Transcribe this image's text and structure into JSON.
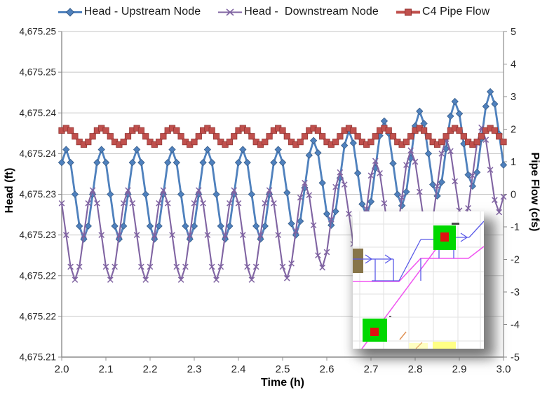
{
  "figure": {
    "legend": [
      {
        "label": "Head - Upstream Node",
        "marker": "diamond",
        "color": "#4F81BD",
        "edge": "#385D8A"
      },
      {
        "label": "Head -  Downstream Node",
        "marker": "x-cross",
        "color": "#8064A2",
        "edge": "#604A7B"
      },
      {
        "label": "C4 Pipe Flow",
        "marker": "square",
        "color": "#C0504D",
        "edge": "#943634"
      }
    ],
    "left_axis": {
      "title": "Head (ft)",
      "tick_labels": [
        "4,675.25",
        "4,675.25",
        "4,675.24",
        "4,675.24",
        "4,675.23",
        "4,675.23",
        "4,675.22",
        "4,675.22",
        "4,675.21"
      ]
    },
    "right_axis": {
      "title": "Pipe Flow (cfs)",
      "tick_labels": [
        "5",
        "4",
        "3",
        "2",
        "1",
        "0",
        "-1",
        "-2",
        "-3",
        "-4",
        "-5"
      ]
    },
    "x_axis": {
      "title": "Time (h)",
      "tick_labels": [
        "2.0",
        "2.1",
        "2.2",
        "2.3",
        "2.4",
        "2.5",
        "2.6",
        "2.7",
        "2.8",
        "2.9",
        "3.0"
      ]
    },
    "colors": {
      "gridline": "#C6C6C6",
      "axis_line": "#8C8C8C",
      "tick_text": "#262626"
    }
  },
  "chart_data": {
    "type": "line",
    "title": "",
    "xlabel": "Time (h)",
    "ylabel_left": "Head (ft)",
    "ylabel_right": "Pipe Flow (cfs)",
    "xlim": [
      2.0,
      3.0
    ],
    "left_ylim": [
      4675.21,
      4675.25
    ],
    "right_ylim": [
      -5,
      5
    ],
    "grid": "horizontal",
    "legend_position": "top",
    "x": [
      2,
      2.01,
      2.02,
      2.03,
      2.04,
      2.05,
      2.06,
      2.07,
      2.08,
      2.09,
      2.1,
      2.11,
      2.12,
      2.13,
      2.14,
      2.15,
      2.16,
      2.17,
      2.18,
      2.19,
      2.2,
      2.21,
      2.22,
      2.23,
      2.24,
      2.25,
      2.26,
      2.27,
      2.28,
      2.29,
      2.3,
      2.31,
      2.32,
      2.33,
      2.34,
      2.35,
      2.36,
      2.37,
      2.38,
      2.39,
      2.4,
      2.41,
      2.42,
      2.43,
      2.44,
      2.45,
      2.46,
      2.47,
      2.48,
      2.49,
      2.5,
      2.51,
      2.52,
      2.53,
      2.54,
      2.55,
      2.56,
      2.57,
      2.58,
      2.59,
      2.6,
      2.61,
      2.62,
      2.63,
      2.64,
      2.65,
      2.66,
      2.67,
      2.68,
      2.69,
      2.7,
      2.71,
      2.72,
      2.73,
      2.74,
      2.75,
      2.76,
      2.77,
      2.78,
      2.79,
      2.8,
      2.81,
      2.82,
      2.83,
      2.84,
      2.85,
      2.86,
      2.87,
      2.88,
      2.89,
      2.9,
      2.91,
      2.92,
      2.93,
      2.94,
      2.95,
      2.96,
      2.97,
      2.98,
      2.99,
      3
    ],
    "series": [
      {
        "name": "Head - Upstream Node",
        "axis": "left",
        "marker": "diamond",
        "color": "#4F81BD",
        "edge": "#385D8A",
        "values": [
          4675.2339,
          4675.2355,
          4675.2339,
          4675.23,
          4675.2261,
          4675.2245,
          4675.2261,
          4675.23,
          4675.2339,
          4675.2355,
          4675.2339,
          4675.23,
          4675.2261,
          4675.2245,
          4675.2261,
          4675.23,
          4675.2339,
          4675.2355,
          4675.2339,
          4675.23,
          4675.2261,
          4675.2245,
          4675.2261,
          4675.23,
          4675.2339,
          4675.2355,
          4675.2339,
          4675.23,
          4675.2261,
          4675.2245,
          4675.2261,
          4675.23,
          4675.2339,
          4675.2355,
          4675.2339,
          4675.23,
          4675.2261,
          4675.2245,
          4675.2261,
          4675.23,
          4675.2339,
          4675.2355,
          4675.2339,
          4675.23,
          4675.2261,
          4675.2245,
          4675.2261,
          4675.23,
          4675.2339,
          4675.2355,
          4675.2339,
          4675.2302,
          4675.2264,
          4675.225,
          4675.2267,
          4675.2308,
          4675.2348,
          4675.2366,
          4675.2351,
          4675.2314,
          4675.2276,
          4675.2262,
          4675.2279,
          4675.232,
          4675.236,
          4675.2378,
          4675.2363,
          4675.2326,
          4675.2288,
          4675.2274,
          4675.2291,
          4675.2332,
          4675.2372,
          4675.239,
          4675.2375,
          4675.2338,
          4675.23,
          4675.2286,
          4675.2303,
          4675.2344,
          4675.2384,
          4675.2402,
          4675.2387,
          4675.235,
          4675.2312,
          4675.2298,
          4675.2315,
          4675.2356,
          4675.2396,
          4675.2414,
          4675.2399,
          4675.2362,
          4675.2324,
          4675.231,
          4675.2327,
          4675.2368,
          4675.2408,
          4675.2426,
          4675.2411,
          4675.2374,
          4675.2336
        ]
      },
      {
        "name": "Head -  Downstream Node",
        "axis": "left",
        "marker": "x-cross",
        "color": "#8064A2",
        "edge": "#604A7B",
        "values": [
          4675.2289,
          4675.225,
          4675.2211,
          4675.2195,
          4675.2211,
          4675.225,
          4675.2289,
          4675.2305,
          4675.2289,
          4675.225,
          4675.2211,
          4675.2195,
          4675.2211,
          4675.225,
          4675.2289,
          4675.2305,
          4675.2289,
          4675.225,
          4675.2211,
          4675.2195,
          4675.2211,
          4675.225,
          4675.2289,
          4675.2305,
          4675.2289,
          4675.225,
          4675.2211,
          4675.2195,
          4675.2211,
          4675.225,
          4675.2289,
          4675.2305,
          4675.2289,
          4675.225,
          4675.2211,
          4675.2195,
          4675.2211,
          4675.225,
          4675.2289,
          4675.2305,
          4675.2289,
          4675.225,
          4675.2211,
          4675.2195,
          4675.2211,
          4675.225,
          4675.2289,
          4675.2305,
          4675.2289,
          4675.225,
          4675.2211,
          4675.2197,
          4675.2215,
          4675.2255,
          4675.2296,
          4675.2314,
          4675.2299,
          4675.2262,
          4675.2225,
          4675.221,
          4675.2229,
          4675.2269,
          4675.2309,
          4675.2327,
          4675.2312,
          4675.2276,
          4675.2239,
          4675.2224,
          4675.2242,
          4675.2282,
          4675.2323,
          4675.2341,
          4675.2326,
          4675.2289,
          4675.2252,
          4675.2238,
          4675.2256,
          4675.2296,
          4675.2336,
          4675.2354,
          4675.234,
          4675.2303,
          4675.2266,
          4675.2251,
          4675.2269,
          4675.231,
          4675.235,
          4675.2368,
          4675.2353,
          4675.2316,
          4675.228,
          4675.2265,
          4675.2283,
          4675.2323,
          4675.2363,
          4675.2382,
          4675.2367,
          4675.233,
          4675.2293,
          4675.2278,
          4675.2297
        ]
      },
      {
        "name": "C4 Pipe Flow",
        "axis": "right",
        "marker": "square",
        "color": "#C0504D",
        "edge": "#943634",
        "values": [
          1.96,
          2.03,
          1.96,
          1.78,
          1.61,
          1.53,
          1.61,
          1.78,
          1.96,
          2.03,
          1.96,
          1.78,
          1.61,
          1.53,
          1.61,
          1.78,
          1.96,
          2.03,
          1.96,
          1.78,
          1.61,
          1.53,
          1.61,
          1.78,
          1.96,
          2.03,
          1.96,
          1.78,
          1.61,
          1.53,
          1.61,
          1.78,
          1.96,
          2.03,
          1.96,
          1.78,
          1.61,
          1.53,
          1.61,
          1.78,
          1.96,
          2.03,
          1.96,
          1.78,
          1.61,
          1.53,
          1.61,
          1.78,
          1.96,
          2.03,
          1.96,
          1.78,
          1.61,
          1.53,
          1.61,
          1.78,
          1.96,
          2.03,
          1.96,
          1.78,
          1.61,
          1.53,
          1.61,
          1.78,
          1.96,
          2.03,
          1.96,
          1.78,
          1.61,
          1.53,
          1.61,
          1.78,
          1.96,
          2.03,
          1.96,
          1.78,
          1.61,
          1.53,
          1.61,
          1.78,
          1.96,
          2.03,
          1.96,
          1.78,
          1.61,
          1.53,
          1.61,
          1.78,
          1.96,
          2.03,
          1.96,
          1.78,
          1.61,
          1.53,
          1.61,
          1.78,
          1.96,
          2.03,
          1.96,
          1.78,
          1.61
        ]
      }
    ]
  },
  "inset": {
    "background": "#FFFFFF",
    "grid": "#E2E2E2",
    "node_fill": "#00D800",
    "node_center": "#E01111",
    "conduit_blue": "#5B5BE8",
    "line_magenta": "#F055F0",
    "block_brown": "#877549",
    "area_yellow_1": "#FFFFC2",
    "area_yellow_2": "#FFFF85",
    "orange_dash": "#E09357"
  }
}
